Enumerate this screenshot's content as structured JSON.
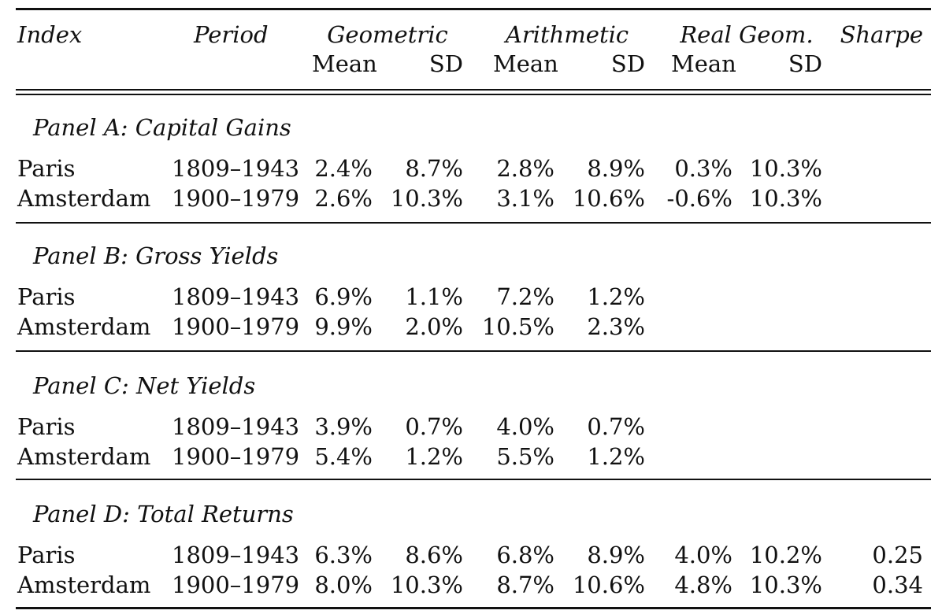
{
  "header": {
    "index": "Index",
    "period": "Period",
    "geometric": "Geometric",
    "arithmetic": "Arithmetic",
    "real_geom": "Real Geom.",
    "sharpe": "Sharpe",
    "mean": "Mean",
    "sd": "SD"
  },
  "panels": [
    {
      "title": "Panel A: Capital Gains",
      "rows": [
        {
          "index": "Paris",
          "period": "1809–1943",
          "geo_mean": "2.4%",
          "geo_sd": "8.7%",
          "ari_mean": "2.8%",
          "ari_sd": "8.9%",
          "real_mean": "0.3%",
          "real_sd": "10.3%",
          "sharpe": ""
        },
        {
          "index": "Amsterdam",
          "period": "1900–1979",
          "geo_mean": "2.6%",
          "geo_sd": "10.3%",
          "ari_mean": "3.1%",
          "ari_sd": "10.6%",
          "real_mean": "-0.6%",
          "real_sd": "10.3%",
          "sharpe": ""
        }
      ]
    },
    {
      "title": "Panel B: Gross Yields",
      "rows": [
        {
          "index": "Paris",
          "period": "1809–1943",
          "geo_mean": "6.9%",
          "geo_sd": "1.1%",
          "ari_mean": "7.2%",
          "ari_sd": "1.2%",
          "real_mean": "",
          "real_sd": "",
          "sharpe": ""
        },
        {
          "index": "Amsterdam",
          "period": "1900–1979",
          "geo_mean": "9.9%",
          "geo_sd": "2.0%",
          "ari_mean": "10.5%",
          "ari_sd": "2.3%",
          "real_mean": "",
          "real_sd": "",
          "sharpe": ""
        }
      ]
    },
    {
      "title": "Panel C: Net Yields",
      "rows": [
        {
          "index": "Paris",
          "period": "1809–1943",
          "geo_mean": "3.9%",
          "geo_sd": "0.7%",
          "ari_mean": "4.0%",
          "ari_sd": "0.7%",
          "real_mean": "",
          "real_sd": "",
          "sharpe": ""
        },
        {
          "index": "Amsterdam",
          "period": "1900–1979",
          "geo_mean": "5.4%",
          "geo_sd": "1.2%",
          "ari_mean": "5.5%",
          "ari_sd": "1.2%",
          "real_mean": "",
          "real_sd": "",
          "sharpe": ""
        }
      ]
    },
    {
      "title": "Panel D: Total Returns",
      "rows": [
        {
          "index": "Paris",
          "period": "1809–1943",
          "geo_mean": "6.3%",
          "geo_sd": "8.6%",
          "ari_mean": "6.8%",
          "ari_sd": "8.9%",
          "real_mean": "4.0%",
          "real_sd": "10.2%",
          "sharpe": "0.25"
        },
        {
          "index": "Amsterdam",
          "period": "1900–1979",
          "geo_mean": "8.0%",
          "geo_sd": "10.3%",
          "ari_mean": "8.7%",
          "ari_sd": "10.6%",
          "real_mean": "4.8%",
          "real_sd": "10.3%",
          "sharpe": "0.34"
        }
      ]
    }
  ]
}
